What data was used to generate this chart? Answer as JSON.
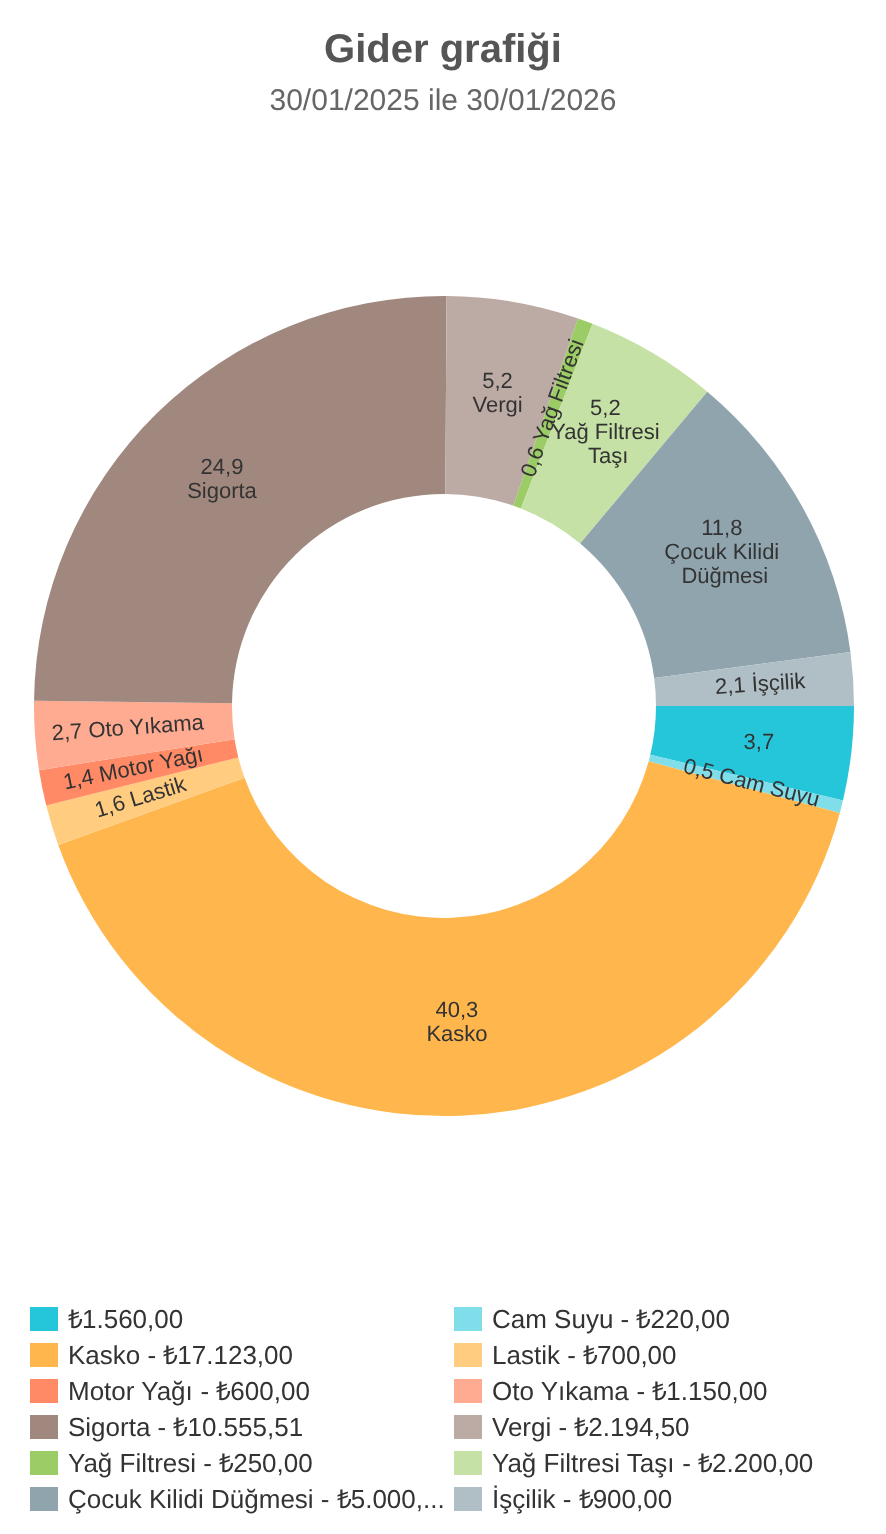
{
  "chart_data": {
    "type": "donut",
    "title": "Gider grafiği",
    "subtitle": "30/01/2025 ile 30/01/2026",
    "categories": [
      null,
      "Cam Suyu",
      "Kasko",
      "Lastik",
      "Motor Yağı",
      "Oto Yıkama",
      "Sigorta",
      "Vergi",
      "Yağ Filtresi",
      "Yağ Filtresi Taşı",
      "Çocuk Kilidi Düğmesi",
      "İşçilik"
    ],
    "values": [
      3.7,
      0.5,
      40.3,
      1.6,
      1.4,
      2.7,
      24.9,
      5.2,
      0.6,
      5.2,
      11.8,
      2.1
    ],
    "value_labels": [
      "3,7",
      "0,5",
      "40,3",
      "1,6",
      "1,4",
      "2,7",
      "24,9",
      "5,2",
      "0,6",
      "5,2",
      "11,8",
      "2,1"
    ],
    "annotations": [
      "₺1.560,00",
      "- ₺220,00",
      "- ₺17.123,00",
      "- ₺700,00",
      "- ₺600,00",
      "- ₺1.150,00",
      "- ₺10.555,51",
      "- ₺2.194,50",
      "- ₺250,00",
      "- ₺2.200,00",
      "- ₺5.000,...",
      "- ₺900,00"
    ],
    "colors": [
      "#26c6da",
      "#80deea",
      "#ffb74d",
      "#ffcc80",
      "#ff8a65",
      "#ffab91",
      "#a1887f",
      "#bcaaa4",
      "#9ccc65",
      "#c5e1a5",
      "#90a4ae",
      "#b0bec5"
    ],
    "legend": "bottom"
  }
}
